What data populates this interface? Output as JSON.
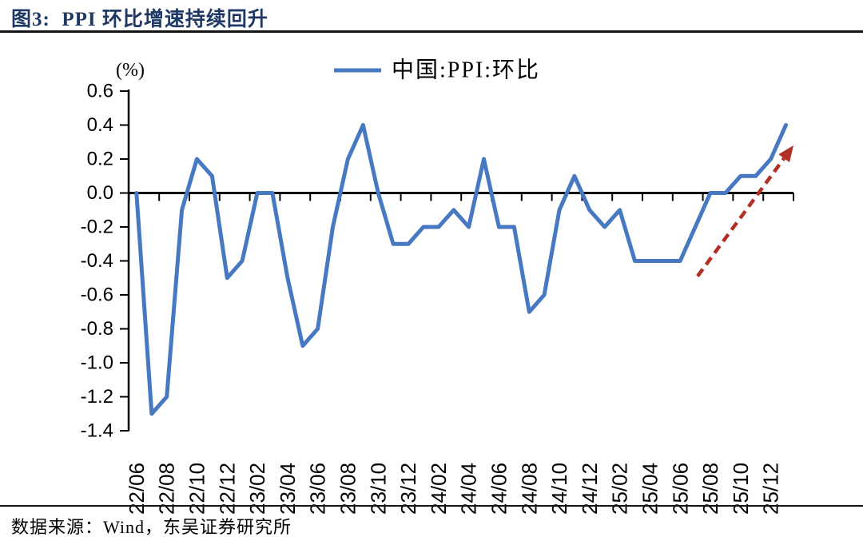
{
  "page": {
    "title": "图3:  PPI 环比增速持续回升",
    "source": "数据来源：Wind，东吴证券研究所"
  },
  "chart_data": {
    "type": "line",
    "title": "图3:  PPI 环比增速持续回升",
    "unit_label": "(%)",
    "legend": [
      "中国:PPI:环比"
    ],
    "legend_position": "top",
    "grid": false,
    "xlabel": "",
    "ylabel": "(%)",
    "ylim": [
      -1.4,
      0.6
    ],
    "ytick_step": 0.2,
    "xtick_every": 2,
    "categories": [
      "22/06",
      "22/07",
      "22/08",
      "22/09",
      "22/10",
      "22/11",
      "22/12",
      "23/01",
      "23/02",
      "23/03",
      "23/04",
      "23/05",
      "23/06",
      "23/07",
      "23/08",
      "23/09",
      "23/10",
      "23/11",
      "23/12",
      "24/01",
      "24/02",
      "24/03",
      "24/04",
      "24/05",
      "24/06",
      "24/07",
      "24/08",
      "24/09",
      "24/10",
      "24/11",
      "24/12",
      "25/01",
      "25/02",
      "25/03",
      "25/04",
      "25/05",
      "25/06",
      "25/07",
      "25/08",
      "25/09",
      "25/10",
      "25/11",
      "25/12",
      "26/01"
    ],
    "series": [
      {
        "name": "中国:PPI:环比",
        "color": "#4778C2",
        "values": [
          0.0,
          -1.3,
          -1.2,
          -0.1,
          0.2,
          0.1,
          -0.5,
          -0.4,
          0.0,
          0.0,
          -0.5,
          -0.9,
          -0.8,
          -0.2,
          0.2,
          0.4,
          0.0,
          -0.3,
          -0.3,
          -0.2,
          -0.2,
          -0.1,
          -0.2,
          0.2,
          -0.2,
          -0.2,
          -0.7,
          -0.6,
          -0.1,
          0.1,
          -0.1,
          -0.2,
          -0.1,
          -0.4,
          -0.4,
          -0.4,
          -0.4,
          -0.2,
          0.0,
          0.0,
          0.1,
          0.1,
          0.2,
          0.4
        ]
      }
    ],
    "annotation": {
      "type": "dashed-arrow",
      "color": "#B03024",
      "from": {
        "index": 37.15,
        "value": -0.49
      },
      "to": {
        "index": 43.5,
        "value": 0.28
      }
    },
    "axis_color": "#000000"
  }
}
